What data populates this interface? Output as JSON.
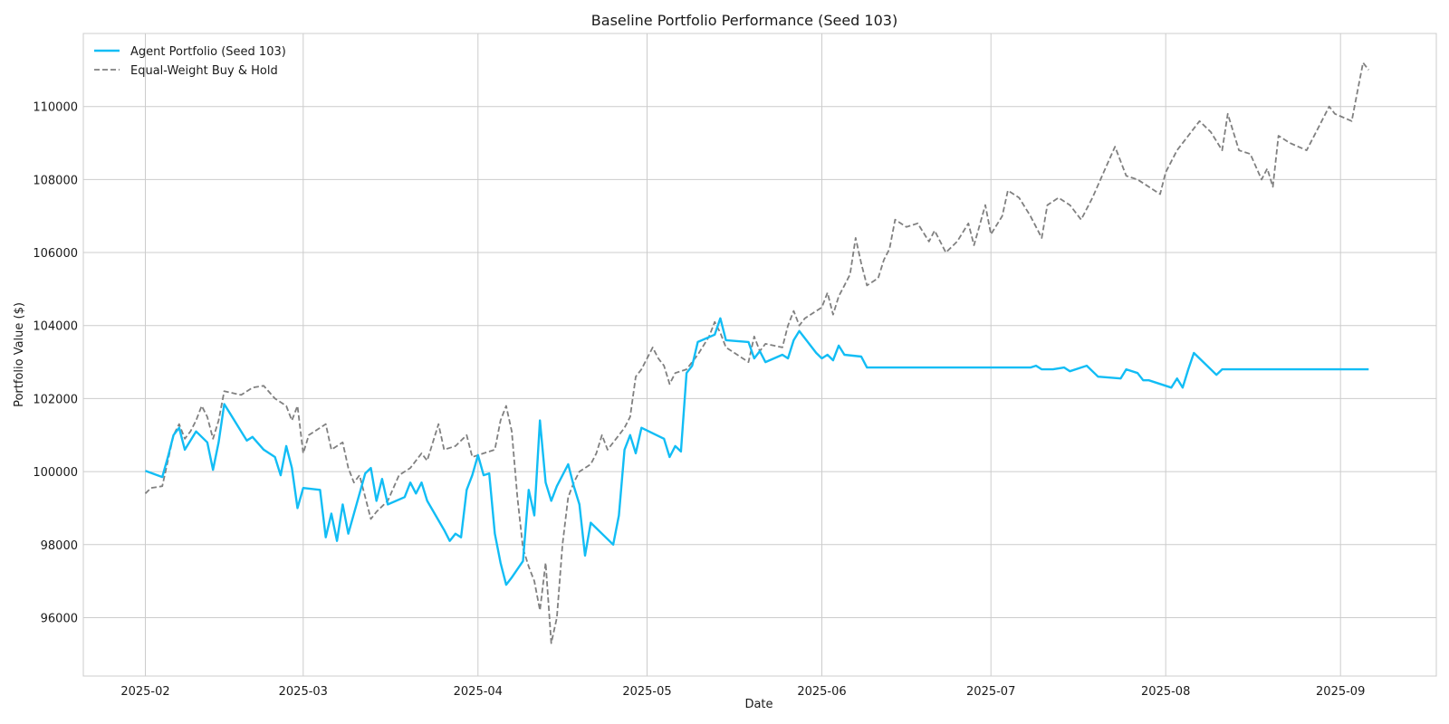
{
  "chart_data": {
    "type": "line",
    "title": "Baseline Portfolio Performance (Seed 103)",
    "xlabel": "Date",
    "ylabel": "Portfolio Value ($)",
    "xlim": [
      "2025-01-21",
      "2025-09-18"
    ],
    "ylim": [
      94400,
      112000
    ],
    "x_ticks": [
      "2025-02",
      "2025-03",
      "2025-04",
      "2025-05",
      "2025-06",
      "2025-07",
      "2025-08",
      "2025-09"
    ],
    "y_ticks": [
      96000,
      98000,
      100000,
      102000,
      104000,
      106000,
      108000,
      110000
    ],
    "grid": true,
    "legend_position": "top-left",
    "series": [
      {
        "name": "Agent Portfolio (Seed 103)",
        "color": "#12bdf5",
        "style": "solid",
        "points": [
          [
            "2025-02-01",
            100020
          ],
          [
            "2025-02-04",
            99850
          ],
          [
            "2025-02-05",
            100400
          ],
          [
            "2025-02-06",
            101000
          ],
          [
            "2025-02-07",
            101200
          ],
          [
            "2025-02-08",
            100600
          ],
          [
            "2025-02-10",
            101100
          ],
          [
            "2025-02-12",
            100800
          ],
          [
            "2025-02-13",
            100050
          ],
          [
            "2025-02-14",
            100800
          ],
          [
            "2025-02-15",
            101850
          ],
          [
            "2025-02-18",
            101100
          ],
          [
            "2025-02-19",
            100850
          ],
          [
            "2025-02-20",
            100950
          ],
          [
            "2025-02-22",
            100600
          ],
          [
            "2025-02-24",
            100400
          ],
          [
            "2025-02-25",
            99900
          ],
          [
            "2025-02-26",
            100700
          ],
          [
            "2025-02-27",
            100100
          ],
          [
            "2025-02-28",
            99000
          ],
          [
            "2025-03-01",
            99550
          ],
          [
            "2025-03-04",
            99500
          ],
          [
            "2025-03-05",
            98200
          ],
          [
            "2025-03-06",
            98850
          ],
          [
            "2025-03-07",
            98100
          ],
          [
            "2025-03-08",
            99100
          ],
          [
            "2025-03-09",
            98300
          ],
          [
            "2025-03-12",
            99950
          ],
          [
            "2025-03-13",
            100100
          ],
          [
            "2025-03-14",
            99200
          ],
          [
            "2025-03-15",
            99800
          ],
          [
            "2025-03-16",
            99100
          ],
          [
            "2025-03-19",
            99300
          ],
          [
            "2025-03-20",
            99700
          ],
          [
            "2025-03-21",
            99400
          ],
          [
            "2025-03-22",
            99700
          ],
          [
            "2025-03-23",
            99200
          ],
          [
            "2025-03-26",
            98400
          ],
          [
            "2025-03-27",
            98100
          ],
          [
            "2025-03-28",
            98300
          ],
          [
            "2025-03-29",
            98200
          ],
          [
            "2025-03-30",
            99500
          ],
          [
            "2025-03-31",
            99900
          ],
          [
            "2025-04-01",
            100450
          ],
          [
            "2025-04-02",
            99900
          ],
          [
            "2025-04-03",
            99950
          ],
          [
            "2025-04-04",
            98300
          ],
          [
            "2025-04-05",
            97500
          ],
          [
            "2025-04-06",
            96900
          ],
          [
            "2025-04-07",
            97100
          ],
          [
            "2025-04-09",
            97550
          ],
          [
            "2025-04-10",
            99500
          ],
          [
            "2025-04-11",
            98800
          ],
          [
            "2025-04-12",
            101400
          ],
          [
            "2025-04-13",
            99700
          ],
          [
            "2025-04-14",
            99200
          ],
          [
            "2025-04-15",
            99600
          ],
          [
            "2025-04-17",
            100200
          ],
          [
            "2025-04-18",
            99600
          ],
          [
            "2025-04-19",
            99100
          ],
          [
            "2025-04-20",
            97700
          ],
          [
            "2025-04-21",
            98600
          ],
          [
            "2025-04-25",
            98000
          ],
          [
            "2025-04-26",
            98800
          ],
          [
            "2025-04-27",
            100600
          ],
          [
            "2025-04-28",
            101000
          ],
          [
            "2025-04-29",
            100500
          ],
          [
            "2025-04-30",
            101200
          ],
          [
            "2025-05-04",
            100900
          ],
          [
            "2025-05-05",
            100400
          ],
          [
            "2025-05-06",
            100700
          ],
          [
            "2025-05-07",
            100550
          ],
          [
            "2025-05-08",
            102700
          ],
          [
            "2025-05-09",
            102900
          ],
          [
            "2025-05-10",
            103550
          ],
          [
            "2025-05-13",
            103750
          ],
          [
            "2025-05-14",
            104200
          ],
          [
            "2025-05-15",
            103600
          ],
          [
            "2025-05-19",
            103550
          ],
          [
            "2025-05-20",
            103100
          ],
          [
            "2025-05-21",
            103300
          ],
          [
            "2025-05-22",
            103000
          ],
          [
            "2025-05-25",
            103200
          ],
          [
            "2025-05-26",
            103100
          ],
          [
            "2025-05-27",
            103600
          ],
          [
            "2025-05-28",
            103850
          ],
          [
            "2025-05-31",
            103250
          ],
          [
            "2025-06-01",
            103100
          ],
          [
            "2025-06-02",
            103200
          ],
          [
            "2025-06-03",
            103050
          ],
          [
            "2025-06-04",
            103450
          ],
          [
            "2025-06-05",
            103200
          ],
          [
            "2025-06-08",
            103150
          ],
          [
            "2025-06-09",
            102850
          ],
          [
            "2025-06-10",
            102850
          ],
          [
            "2025-07-08",
            102850
          ],
          [
            "2025-07-09",
            102900
          ],
          [
            "2025-07-10",
            102800
          ],
          [
            "2025-07-12",
            102800
          ],
          [
            "2025-07-14",
            102850
          ],
          [
            "2025-07-15",
            102750
          ],
          [
            "2025-07-17",
            102850
          ],
          [
            "2025-07-18",
            102900
          ],
          [
            "2025-07-20",
            102600
          ],
          [
            "2025-07-24",
            102550
          ],
          [
            "2025-07-25",
            102800
          ],
          [
            "2025-07-27",
            102700
          ],
          [
            "2025-07-28",
            102500
          ],
          [
            "2025-07-29",
            102500
          ],
          [
            "2025-08-02",
            102300
          ],
          [
            "2025-08-03",
            102550
          ],
          [
            "2025-08-04",
            102300
          ],
          [
            "2025-08-05",
            102800
          ],
          [
            "2025-08-06",
            103250
          ],
          [
            "2025-08-09",
            102800
          ],
          [
            "2025-08-10",
            102650
          ],
          [
            "2025-08-11",
            102800
          ],
          [
            "2025-09-06",
            102800
          ]
        ]
      },
      {
        "name": "Equal-Weight Buy & Hold",
        "color": "#808080",
        "style": "dashed",
        "points": [
          [
            "2025-02-01",
            99400
          ],
          [
            "2025-02-02",
            99550
          ],
          [
            "2025-02-04",
            99600
          ],
          [
            "2025-02-05",
            100300
          ],
          [
            "2025-02-06",
            101000
          ],
          [
            "2025-02-07",
            101300
          ],
          [
            "2025-02-08",
            100900
          ],
          [
            "2025-02-09",
            101100
          ],
          [
            "2025-02-10",
            101400
          ],
          [
            "2025-02-11",
            101800
          ],
          [
            "2025-02-12",
            101500
          ],
          [
            "2025-02-13",
            100900
          ],
          [
            "2025-02-14",
            101400
          ],
          [
            "2025-02-15",
            102200
          ],
          [
            "2025-02-18",
            102100
          ],
          [
            "2025-02-20",
            102300
          ],
          [
            "2025-02-22",
            102350
          ],
          [
            "2025-02-24",
            102000
          ],
          [
            "2025-02-26",
            101800
          ],
          [
            "2025-02-27",
            101400
          ],
          [
            "2025-02-28",
            101800
          ],
          [
            "2025-03-01",
            100500
          ],
          [
            "2025-03-02",
            101000
          ],
          [
            "2025-03-05",
            101300
          ],
          [
            "2025-03-06",
            100600
          ],
          [
            "2025-03-08",
            100800
          ],
          [
            "2025-03-09",
            100100
          ],
          [
            "2025-03-10",
            99700
          ],
          [
            "2025-03-11",
            99900
          ],
          [
            "2025-03-12",
            99300
          ],
          [
            "2025-03-13",
            98700
          ],
          [
            "2025-03-14",
            98900
          ],
          [
            "2025-03-16",
            99200
          ],
          [
            "2025-03-18",
            99900
          ],
          [
            "2025-03-20",
            100100
          ],
          [
            "2025-03-22",
            100500
          ],
          [
            "2025-03-23",
            100300
          ],
          [
            "2025-03-25",
            101300
          ],
          [
            "2025-03-26",
            100600
          ],
          [
            "2025-03-28",
            100700
          ],
          [
            "2025-03-30",
            101000
          ],
          [
            "2025-03-31",
            100400
          ],
          [
            "2025-04-02",
            100500
          ],
          [
            "2025-04-04",
            100600
          ],
          [
            "2025-04-05",
            101400
          ],
          [
            "2025-04-06",
            101800
          ],
          [
            "2025-04-07",
            101100
          ],
          [
            "2025-04-08",
            99300
          ],
          [
            "2025-04-09",
            97900
          ],
          [
            "2025-04-10",
            97400
          ],
          [
            "2025-04-11",
            97000
          ],
          [
            "2025-04-12",
            96200
          ],
          [
            "2025-04-13",
            97500
          ],
          [
            "2025-04-14",
            95300
          ],
          [
            "2025-04-15",
            96000
          ],
          [
            "2025-04-16",
            98000
          ],
          [
            "2025-04-17",
            99300
          ],
          [
            "2025-04-18",
            99700
          ],
          [
            "2025-04-19",
            100000
          ],
          [
            "2025-04-21",
            100200
          ],
          [
            "2025-04-22",
            100500
          ],
          [
            "2025-04-23",
            101000
          ],
          [
            "2025-04-24",
            100600
          ],
          [
            "2025-04-26",
            101000
          ],
          [
            "2025-04-27",
            101200
          ],
          [
            "2025-04-28",
            101500
          ],
          [
            "2025-04-29",
            102600
          ],
          [
            "2025-04-30",
            102800
          ],
          [
            "2025-05-02",
            103400
          ],
          [
            "2025-05-03",
            103100
          ],
          [
            "2025-05-04",
            102900
          ],
          [
            "2025-05-05",
            102400
          ],
          [
            "2025-05-06",
            102700
          ],
          [
            "2025-05-08",
            102800
          ],
          [
            "2025-05-10",
            103200
          ],
          [
            "2025-05-12",
            103700
          ],
          [
            "2025-05-13",
            104100
          ],
          [
            "2025-05-14",
            103800
          ],
          [
            "2025-05-15",
            103400
          ],
          [
            "2025-05-17",
            103200
          ],
          [
            "2025-05-19",
            103000
          ],
          [
            "2025-05-20",
            103700
          ],
          [
            "2025-05-21",
            103300
          ],
          [
            "2025-05-22",
            103500
          ],
          [
            "2025-05-25",
            103400
          ],
          [
            "2025-05-26",
            104000
          ],
          [
            "2025-05-27",
            104400
          ],
          [
            "2025-05-28",
            104000
          ],
          [
            "2025-05-29",
            104200
          ],
          [
            "2025-06-01",
            104500
          ],
          [
            "2025-06-02",
            104900
          ],
          [
            "2025-06-03",
            104300
          ],
          [
            "2025-06-04",
            104800
          ],
          [
            "2025-06-05",
            105100
          ],
          [
            "2025-06-06",
            105400
          ],
          [
            "2025-06-07",
            106400
          ],
          [
            "2025-06-08",
            105700
          ],
          [
            "2025-06-09",
            105100
          ],
          [
            "2025-06-11",
            105300
          ],
          [
            "2025-06-12",
            105800
          ],
          [
            "2025-06-13",
            106100
          ],
          [
            "2025-06-14",
            106900
          ],
          [
            "2025-06-16",
            106700
          ],
          [
            "2025-06-18",
            106800
          ],
          [
            "2025-06-20",
            106300
          ],
          [
            "2025-06-21",
            106600
          ],
          [
            "2025-06-23",
            106000
          ],
          [
            "2025-06-25",
            106300
          ],
          [
            "2025-06-27",
            106800
          ],
          [
            "2025-06-28",
            106200
          ],
          [
            "2025-06-30",
            107300
          ],
          [
            "2025-07-01",
            106500
          ],
          [
            "2025-07-03",
            107000
          ],
          [
            "2025-07-04",
            107700
          ],
          [
            "2025-07-06",
            107500
          ],
          [
            "2025-07-08",
            107000
          ],
          [
            "2025-07-10",
            106400
          ],
          [
            "2025-07-11",
            107300
          ],
          [
            "2025-07-13",
            107500
          ],
          [
            "2025-07-15",
            107300
          ],
          [
            "2025-07-17",
            106900
          ],
          [
            "2025-07-19",
            107500
          ],
          [
            "2025-07-21",
            108200
          ],
          [
            "2025-07-23",
            108900
          ],
          [
            "2025-07-25",
            108100
          ],
          [
            "2025-07-27",
            108000
          ],
          [
            "2025-07-29",
            107800
          ],
          [
            "2025-07-31",
            107600
          ],
          [
            "2025-08-01",
            108200
          ],
          [
            "2025-08-03",
            108800
          ],
          [
            "2025-08-05",
            109200
          ],
          [
            "2025-08-07",
            109600
          ],
          [
            "2025-08-09",
            109300
          ],
          [
            "2025-08-11",
            108800
          ],
          [
            "2025-08-12",
            109800
          ],
          [
            "2025-08-14",
            108800
          ],
          [
            "2025-08-16",
            108700
          ],
          [
            "2025-08-18",
            108000
          ],
          [
            "2025-08-19",
            108300
          ],
          [
            "2025-08-20",
            107800
          ],
          [
            "2025-08-21",
            109200
          ],
          [
            "2025-08-23",
            109000
          ],
          [
            "2025-08-26",
            108800
          ],
          [
            "2025-08-28",
            109400
          ],
          [
            "2025-08-30",
            110000
          ],
          [
            "2025-08-31",
            109800
          ],
          [
            "2025-09-03",
            109600
          ],
          [
            "2025-09-04",
            110400
          ],
          [
            "2025-09-05",
            111200
          ],
          [
            "2025-09-06",
            111000
          ]
        ]
      }
    ]
  }
}
